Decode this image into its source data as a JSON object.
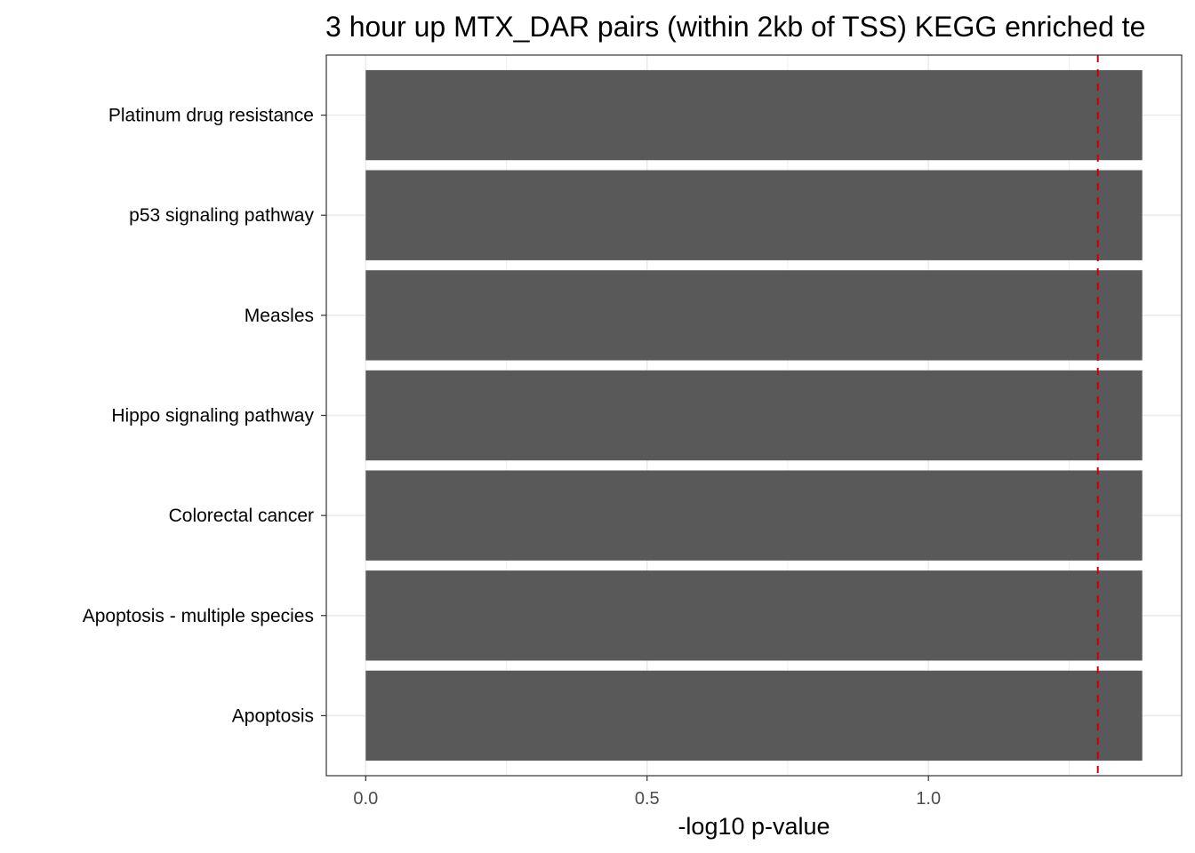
{
  "chart_data": {
    "type": "bar",
    "orientation": "horizontal",
    "title": "3 hour up MTX_DAR pairs (within 2kb of TSS) KEGG enriched te",
    "xlabel": "-log10 p-value",
    "ylabel": "",
    "categories": [
      "Platinum drug resistance",
      "p53 signaling pathway",
      "Measles",
      "Hippo signaling pathway",
      "Colorectal cancer",
      "Apoptosis - multiple species",
      "Apoptosis"
    ],
    "values": [
      1.38,
      1.38,
      1.38,
      1.38,
      1.38,
      1.38,
      1.38
    ],
    "xlim": [
      -0.07,
      1.45
    ],
    "xticks": [
      0.0,
      0.5,
      1.0
    ],
    "xtick_labels": [
      "0.0",
      "0.5",
      "1.0"
    ],
    "reference_line": {
      "x": 1.301,
      "style": "dashed",
      "color": "#cc0000"
    },
    "bar_color": "#595959",
    "grid": true,
    "theme": "bw"
  }
}
